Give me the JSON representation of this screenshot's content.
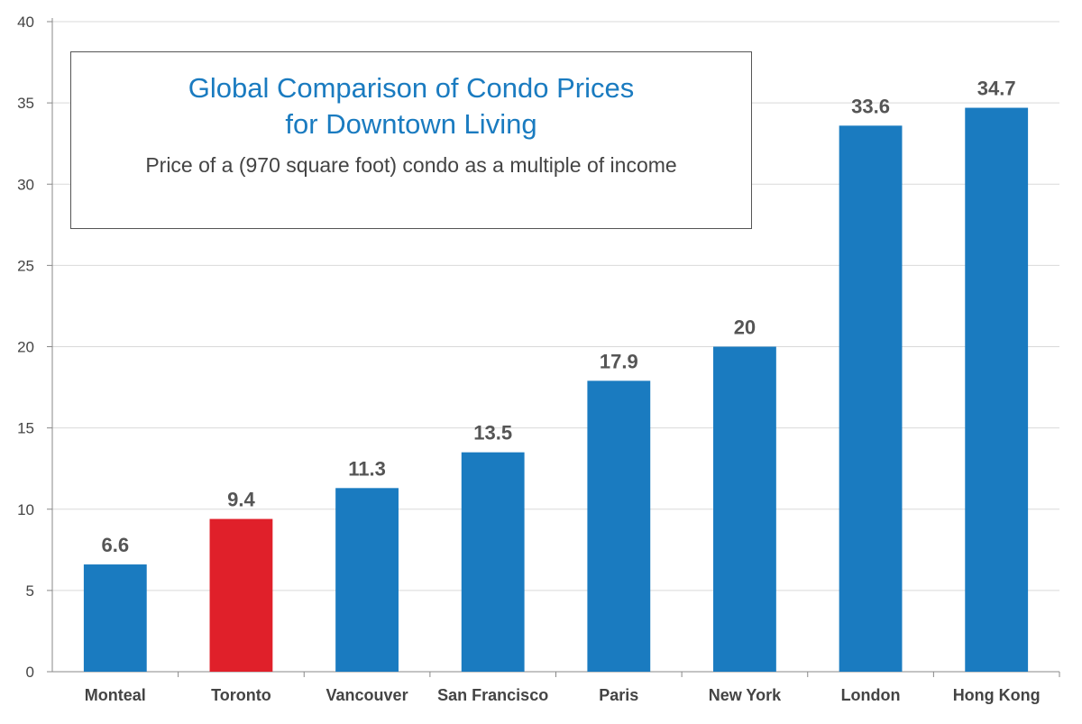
{
  "chart_data": {
    "type": "bar",
    "title_lines": [
      "Global Comparison of Condo Prices",
      "for Downtown Living"
    ],
    "subtitle": "Price of a (970 square foot) condo as a multiple of income",
    "categories": [
      "Monteal",
      "Toronto",
      "Vancouver",
      "San Francisco",
      "Paris",
      "New York",
      "London",
      "Hong Kong"
    ],
    "values": [
      6.6,
      9.4,
      11.3,
      13.5,
      17.9,
      20,
      33.6,
      34.7
    ],
    "value_labels": [
      "6.6",
      "9.4",
      "11.3",
      "13.5",
      "17.9",
      "20",
      "33.6",
      "34.7"
    ],
    "highlight_category": "Toronto",
    "ylim": [
      0,
      40
    ],
    "yticks": [
      0,
      5,
      10,
      15,
      20,
      25,
      30,
      35,
      40
    ],
    "grid": true,
    "xlabel": "",
    "ylabel": "",
    "colors": {
      "bar": "#1a7bc0",
      "highlight": "#e0202a",
      "grid": "#d9d9d9",
      "axis": "#888888",
      "tick_text": "#444444",
      "value_label_text": "#555555",
      "category_text": "#444444",
      "title": "#1a7bc0"
    }
  }
}
